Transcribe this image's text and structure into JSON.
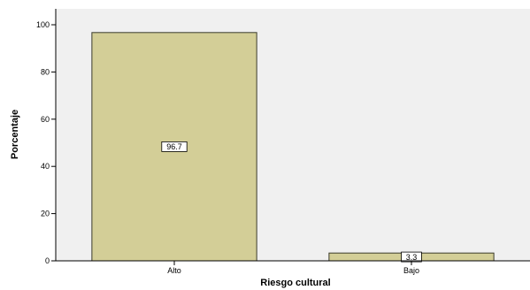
{
  "chart_data": {
    "type": "bar",
    "title": "",
    "xlabel": "Riesgo cultural",
    "ylabel": "Porcentaje",
    "categories": [
      "Alto",
      "Bajo"
    ],
    "values": [
      96.7,
      3.3
    ],
    "data_labels": [
      "96.7",
      "3.3"
    ],
    "ylim": [
      0,
      100
    ],
    "yticks": [
      0,
      20,
      40,
      60,
      80,
      100
    ],
    "grid": false,
    "legend": "none",
    "colors": {
      "plot_background": "#f0f0f0",
      "bar_fill": "#d3ce97",
      "bar_stroke": "#3a3a2a",
      "axis": "#000000"
    }
  }
}
